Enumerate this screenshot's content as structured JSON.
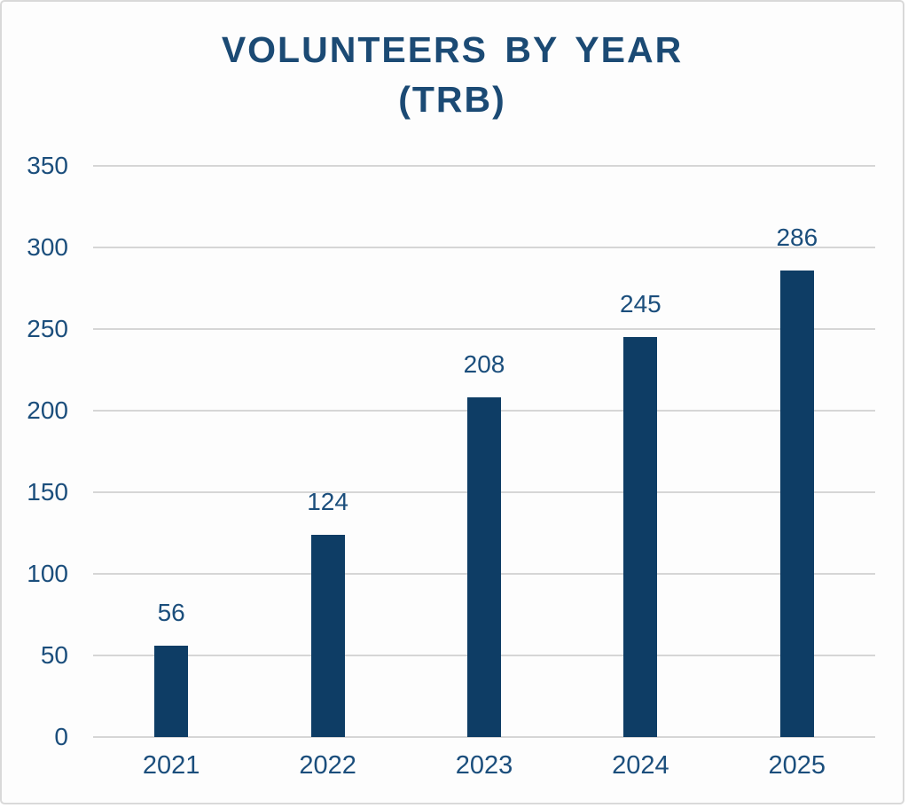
{
  "title": {
    "line1": "VOLUNTEERS BY YEAR",
    "line2": "(TRB)"
  },
  "colors": {
    "bar": "#0e3d65",
    "title_text": "#1b4a74",
    "axis_text": "#1b4e7c",
    "gridline": "#d6d6d6",
    "background": "#fdfdfd",
    "border": "#d9d9d9"
  },
  "chart_data": {
    "type": "bar",
    "title": "VOLUNTEERS BY YEAR (TRB)",
    "categories": [
      "2021",
      "2022",
      "2023",
      "2024",
      "2025"
    ],
    "values": [
      56,
      124,
      208,
      245,
      286
    ],
    "bar_labels": [
      "56",
      "124",
      "208",
      "245",
      "286"
    ],
    "xlabel": "",
    "ylabel": "",
    "ylim": [
      0,
      350
    ],
    "ytick_step": 50,
    "ytick_labels": [
      "0",
      "50",
      "100",
      "150",
      "200",
      "250",
      "300",
      "350"
    ],
    "grid": true,
    "legend": false
  }
}
